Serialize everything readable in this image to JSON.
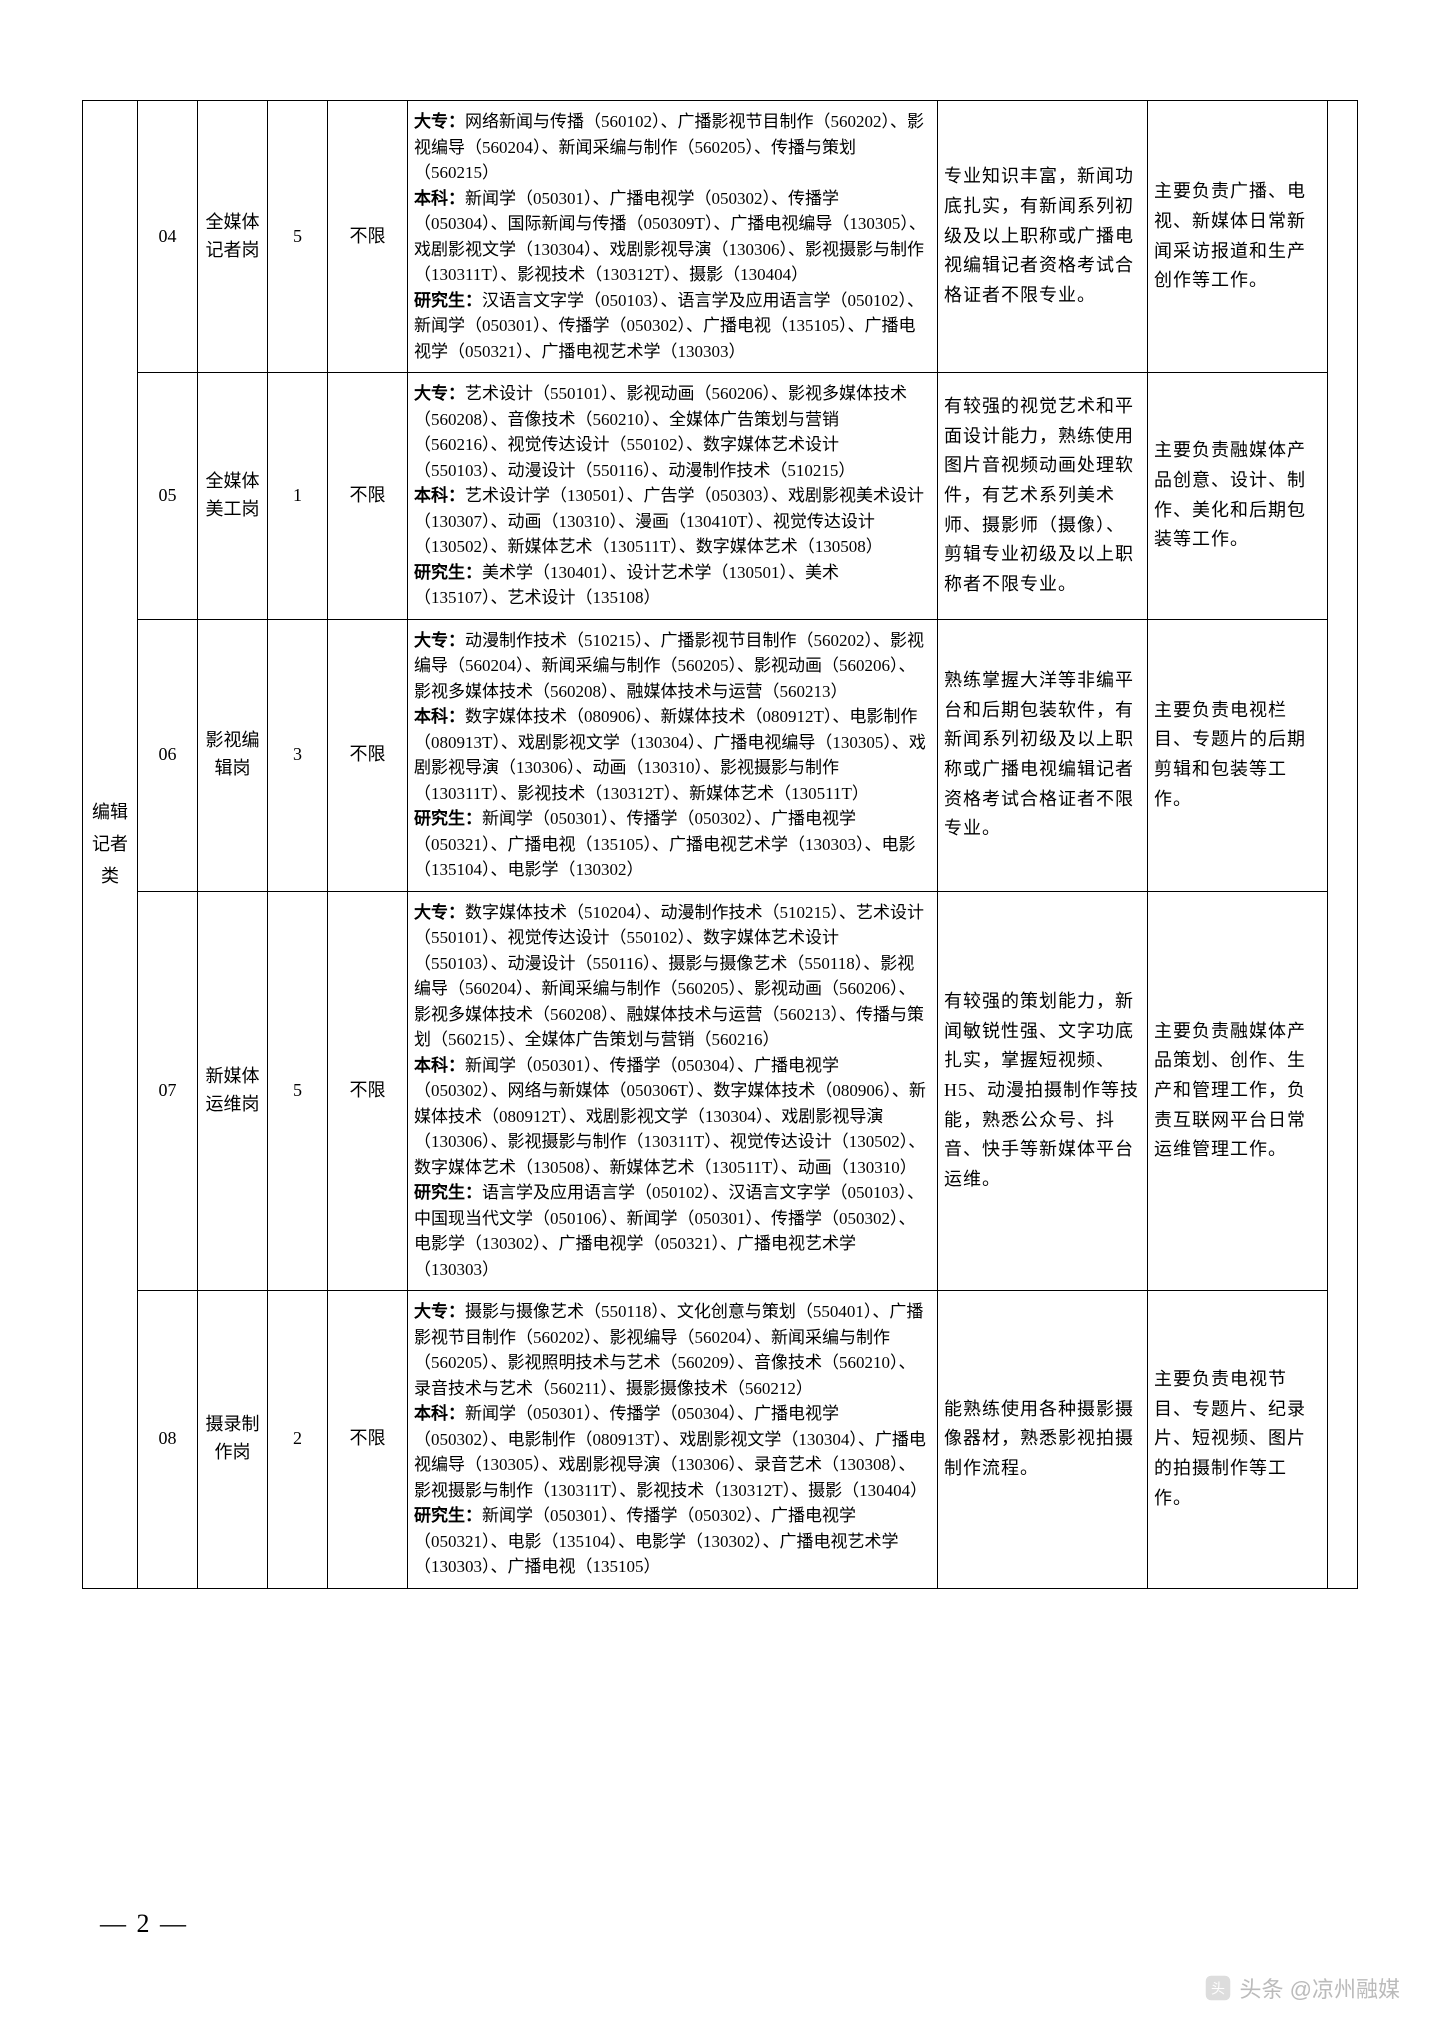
{
  "category": "编辑记者类",
  "page_marker": "— 2 —",
  "watermark_text": "头条 @凉州融媒",
  "rows": [
    {
      "code": "04",
      "post": "全媒体记者岗",
      "num": "5",
      "limit": "不限",
      "spec_dz_label": "大专：",
      "spec_dz": "网络新闻与传播（560102）、广播影视节目制作（560202）、影视编导（560204）、新闻采编与制作（560205）、传播与策划（560215）",
      "spec_bk_label": "本科：",
      "spec_bk": "新闻学（050301）、广播电视学（050302）、传播学（050304）、国际新闻与传播（050309T）、广播电视编导（130305）、戏剧影视文学（130304）、戏剧影视导演（130306）、影视摄影与制作（130311T）、影视技术（130312T）、摄影（130404）",
      "spec_yj_label": "研究生：",
      "spec_yj": "汉语言文字学（050103）、语言学及应用语言学（050102）、新闻学（050301）、传播学（050302）、广播电视（135105）、广播电视学（050321）、广播电视艺术学（130303）",
      "req": "专业知识丰富，新闻功底扎实，有新闻系列初级及以上职称或广播电视编辑记者资格考试合格证者不限专业。",
      "duty": "主要负责广播、电视、新媒体日常新闻采访报道和生产创作等工作。"
    },
    {
      "code": "05",
      "post": "全媒体美工岗",
      "num": "1",
      "limit": "不限",
      "spec_dz_label": "大专：",
      "spec_dz": "艺术设计（550101）、影视动画（560206）、影视多媒体技术（560208）、音像技术（560210）、全媒体广告策划与营销（560216）、视觉传达设计（550102）、数字媒体艺术设计（550103）、动漫设计（550116）、动漫制作技术（510215）",
      "spec_bk_label": "本科：",
      "spec_bk": "艺术设计学（130501）、广告学（050303）、戏剧影视美术设计（130307）、动画（130310）、漫画（130410T）、视觉传达设计（130502）、新媒体艺术（130511T）、数字媒体艺术（130508）",
      "spec_yj_label": "研究生：",
      "spec_yj": "美术学（130401）、设计艺术学（130501）、美术（135107）、艺术设计（135108）",
      "req": "有较强的视觉艺术和平面设计能力，熟练使用图片音视频动画处理软件，有艺术系列美术师、摄影师（摄像）、剪辑专业初级及以上职称者不限专业。",
      "duty": "主要负责融媒体产品创意、设计、制作、美化和后期包装等工作。"
    },
    {
      "code": "06",
      "post": "影视编辑岗",
      "num": "3",
      "limit": "不限",
      "spec_dz_label": "大专：",
      "spec_dz": "动漫制作技术（510215）、广播影视节目制作（560202）、影视编导（560204）、新闻采编与制作（560205）、影视动画（560206）、影视多媒体技术（560208）、融媒体技术与运营（560213）",
      "spec_bk_label": "本科：",
      "spec_bk": "数字媒体技术（080906）、新媒体技术（080912T）、电影制作（080913T）、戏剧影视文学（130304）、广播电视编导（130305）、戏剧影视导演（130306）、动画（130310）、影视摄影与制作（130311T）、影视技术（130312T）、新媒体艺术（130511T）",
      "spec_yj_label": "研究生：",
      "spec_yj": "新闻学（050301）、传播学（050302）、广播电视学（050321）、广播电视（135105）、广播电视艺术学（130303）、电影（135104）、电影学（130302）",
      "req": "熟练掌握大洋等非编平台和后期包装软件，有新闻系列初级及以上职称或广播电视编辑记者资格考试合格证者不限专业。",
      "duty": "主要负责电视栏目、专题片的后期剪辑和包装等工作。"
    },
    {
      "code": "07",
      "post": "新媒体运维岗",
      "num": "5",
      "limit": "不限",
      "spec_dz_label": "大专：",
      "spec_dz": "数字媒体技术（510204）、动漫制作技术（510215）、艺术设计（550101）、视觉传达设计（550102）、数字媒体艺术设计（550103）、动漫设计（550116）、摄影与摄像艺术（550118）、影视编导（560204）、新闻采编与制作（560205）、影视动画（560206）、影视多媒体技术（560208）、融媒体技术与运营（560213）、传播与策划（560215）、全媒体广告策划与营销（560216）",
      "spec_bk_label": "本科：",
      "spec_bk": "新闻学（050301）、传播学（050304）、广播电视学（050302）、网络与新媒体（050306T）、数字媒体技术（080906）、新媒体技术（080912T）、戏剧影视文学（130304）、戏剧影视导演（130306）、影视摄影与制作（130311T）、视觉传达设计（130502）、数字媒体艺术（130508）、新媒体艺术（130511T）、动画（130310）",
      "spec_yj_label": "研究生：",
      "spec_yj": "语言学及应用语言学（050102）、汉语言文字学（050103）、中国现当代文学（050106）、新闻学（050301）、传播学（050302）、电影学（130302）、广播电视学（050321）、广播电视艺术学（130303）",
      "req": "有较强的策划能力，新闻敏锐性强、文字功底扎实，掌握短视频、H5、动漫拍摄制作等技能，熟悉公众号、抖音、快手等新媒体平台运维。",
      "duty": "主要负责融媒体产品策划、创作、生产和管理工作，负责互联网平台日常运维管理工作。"
    },
    {
      "code": "08",
      "post": "摄录制作岗",
      "num": "2",
      "limit": "不限",
      "spec_dz_label": "大专：",
      "spec_dz": "摄影与摄像艺术（550118）、文化创意与策划（550401）、广播影视节目制作（560202）、影视编导（560204）、新闻采编与制作（560205）、影视照明技术与艺术（560209）、音像技术（560210）、录音技术与艺术（560211）、摄影摄像技术（560212）",
      "spec_bk_label": "本科：",
      "spec_bk": "新闻学（050301）、传播学（050304）、广播电视学（050302）、电影制作（080913T）、戏剧影视文学（130304）、广播电视编导（130305）、戏剧影视导演（130306）、录音艺术（130308）、影视摄影与制作（130311T）、影视技术（130312T）、摄影（130404）",
      "spec_yj_label": "研究生：",
      "spec_yj": "新闻学（050301）、传播学（050302）、广播电视学（050321）、电影（135104）、电影学（130302）、广播电视艺术学（130303）、广播电视（135105）",
      "req": "能熟练使用各种摄影摄像器材，熟悉影视拍摄制作流程。",
      "duty": "主要负责电视节目、专题片、纪录片、短视频、图片的拍摄制作等工作。"
    }
  ]
}
